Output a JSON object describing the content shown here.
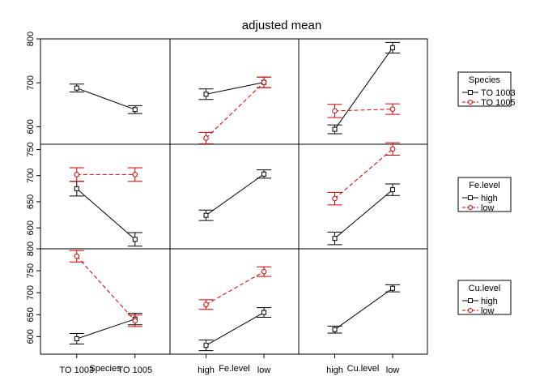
{
  "chart_data": {
    "type": "line",
    "title": "adjusted mean",
    "factors": [
      {
        "name": "Species",
        "levels": [
          "TO 1003",
          "TO 1005"
        ]
      },
      {
        "name": "Fe.level",
        "levels": [
          "high",
          "low"
        ]
      },
      {
        "name": "Cu.level",
        "levels": [
          "high",
          "low"
        ]
      }
    ],
    "row_ylim": [
      [
        560,
        800
      ],
      [
        560,
        760
      ],
      [
        560,
        800
      ]
    ],
    "row_yticks": [
      [
        600,
        700,
        800
      ],
      [
        600,
        650,
        700,
        750
      ],
      [
        600,
        650,
        700,
        750,
        800
      ]
    ],
    "legend_placement": "right",
    "grid": false,
    "colors": {
      "black": "#000000",
      "red": "#cc0000"
    },
    "panels": [
      {
        "row": 0,
        "col": 0,
        "series": [
          {
            "color": "black",
            "dash": false,
            "points": [
              [
                688,
                9
              ],
              [
                639,
                9
              ]
            ]
          }
        ]
      },
      {
        "row": 0,
        "col": 1,
        "series": [
          {
            "color": "black",
            "dash": false,
            "points": [
              [
                674,
                12
              ],
              [
                701,
                12
              ]
            ]
          },
          {
            "color": "red",
            "dash": true,
            "points": [
              [
                574,
                13
              ],
              [
                701,
                12
              ]
            ]
          }
        ]
      },
      {
        "row": 0,
        "col": 2,
        "series": [
          {
            "color": "black",
            "dash": false,
            "points": [
              [
                594,
                10
              ],
              [
                780,
                12
              ]
            ]
          },
          {
            "color": "red",
            "dash": true,
            "points": [
              [
                636,
                15
              ],
              [
                640,
                12
              ]
            ]
          }
        ]
      },
      {
        "row": 1,
        "col": 0,
        "series": [
          {
            "color": "black",
            "dash": false,
            "points": [
              [
                675,
                14
              ],
              [
                578,
                13
              ]
            ]
          },
          {
            "color": "red",
            "dash": true,
            "points": [
              [
                702,
                13
              ],
              [
                702,
                13
              ]
            ]
          }
        ]
      },
      {
        "row": 1,
        "col": 1,
        "series": [
          {
            "color": "black",
            "dash": false,
            "points": [
              [
                624,
                10
              ],
              [
                703,
                8
              ]
            ]
          }
        ]
      },
      {
        "row": 1,
        "col": 2,
        "series": [
          {
            "color": "black",
            "dash": false,
            "points": [
              [
                580,
                12
              ],
              [
                673,
                11
              ]
            ]
          },
          {
            "color": "red",
            "dash": true,
            "points": [
              [
                656,
                12
              ],
              [
                751,
                12
              ]
            ]
          }
        ]
      },
      {
        "row": 2,
        "col": 0,
        "series": [
          {
            "color": "black",
            "dash": false,
            "points": [
              [
                595,
                12
              ],
              [
                640,
                13
              ]
            ]
          },
          {
            "color": "red",
            "dash": true,
            "points": [
              [
                783,
                13
              ],
              [
                636,
                13
              ]
            ]
          }
        ]
      },
      {
        "row": 2,
        "col": 1,
        "series": [
          {
            "color": "black",
            "dash": false,
            "points": [
              [
                580,
                12
              ],
              [
                655,
                11
              ]
            ]
          },
          {
            "color": "red",
            "dash": true,
            "points": [
              [
                673,
                11
              ],
              [
                748,
                11
              ]
            ]
          }
        ]
      },
      {
        "row": 2,
        "col": 2,
        "series": [
          {
            "color": "black",
            "dash": false,
            "points": [
              [
                616,
                8
              ],
              [
                710,
                8
              ]
            ]
          }
        ]
      }
    ],
    "legends": [
      {
        "title": "Species",
        "entries": [
          {
            "label": "TO 1003",
            "color": "black",
            "dash": false
          },
          {
            "label": "TO 1005",
            "color": "red",
            "dash": true
          }
        ]
      },
      {
        "title": "Fe.level",
        "entries": [
          {
            "label": "high",
            "color": "black",
            "dash": false
          },
          {
            "label": "low",
            "color": "red",
            "dash": true
          }
        ]
      },
      {
        "title": "Cu.level",
        "entries": [
          {
            "label": "high",
            "color": "black",
            "dash": false
          },
          {
            "label": "low",
            "color": "red",
            "dash": true
          }
        ]
      }
    ]
  }
}
